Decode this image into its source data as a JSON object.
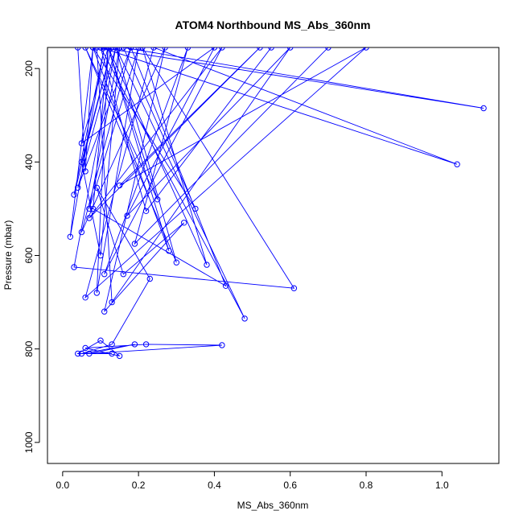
{
  "chart_data": {
    "type": "line",
    "title": "ATOM4 Northbound MS_Abs_360nm",
    "xlabel": "MS_Abs_360nm",
    "ylabel": "Pressure (mbar)",
    "xlim": [
      -0.04,
      1.15
    ],
    "ylim": [
      1045,
      155
    ],
    "y_reversed": true,
    "x_ticks": [
      0.0,
      0.2,
      0.4,
      0.6,
      0.8,
      1.0
    ],
    "x_tick_labels": [
      "0.0",
      "0.2",
      "0.4",
      "0.6",
      "0.8",
      "1.0"
    ],
    "y_ticks": [
      200,
      400,
      600,
      800,
      1000
    ],
    "y_tick_labels": [
      "200",
      "400",
      "600",
      "800",
      "1000"
    ],
    "grid": false,
    "legend": "none",
    "series": [
      {
        "line_color": "#0000ff",
        "marker": "open-circle",
        "x": [
          0.04,
          0.06,
          0.08,
          0.02,
          0.11,
          0.03,
          0.13,
          0.05,
          0.1,
          0.15,
          0.07,
          0.2,
          0.09,
          0.12,
          0.25,
          0.06,
          0.3,
          0.14,
          0.04,
          0.18,
          0.55,
          0.22,
          0.1,
          1.11,
          0.16,
          0.35,
          0.08,
          0.28,
          0.12,
          0.05,
          0.4,
          0.17,
          0.6,
          0.13,
          0.09,
          0.7,
          0.19,
          0.33,
          0.11,
          0.42,
          0.07,
          0.52,
          0.15,
          0.8,
          0.06,
          0.24,
          1.04,
          0.1,
          0.48,
          0.14,
          0.03,
          0.61,
          0.21,
          0.38,
          0.12,
          0.08,
          0.43,
          0.18,
          0.05,
          0.27,
          0.11,
          0.32,
          0.16,
          0.09,
          0.23,
          0.13,
          0.05,
          0.19,
          0.07,
          0.42,
          0.22,
          0.06,
          0.15,
          0.1,
          0.04,
          0.13
        ],
        "y": [
          155,
          420,
          155,
          560,
          155,
          470,
          155,
          400,
          600,
          155,
          500,
          155,
          680,
          155,
          480,
          155,
          615,
          155,
          455,
          155,
          155,
          505,
          155,
          285,
          155,
          500,
          155,
          590,
          155,
          360,
          155,
          515,
          155,
          700,
          155,
          155,
          575,
          155,
          640,
          155,
          520,
          155,
          450,
          155,
          690,
          155,
          405,
          155,
          735,
          155,
          625,
          670,
          155,
          620,
          155,
          500,
          665,
          155,
          550,
          155,
          720,
          530,
          640,
          455,
          650,
          790,
          810,
          790,
          810,
          792,
          790,
          798,
          815,
          782,
          810,
          810
        ]
      }
    ]
  }
}
